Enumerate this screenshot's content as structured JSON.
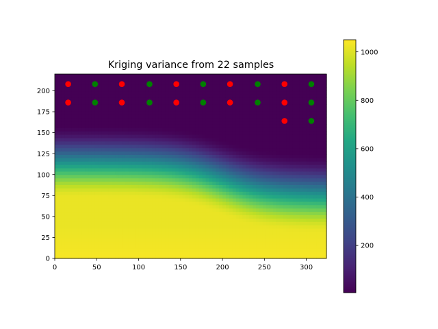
{
  "chart_data": {
    "type": "heatmap",
    "title": "Kriging variance from 22 samples",
    "xlabel": "",
    "ylabel": "",
    "xlim": [
      0,
      324
    ],
    "ylim": [
      0,
      220
    ],
    "x_ticks": [
      0,
      50,
      100,
      150,
      200,
      250,
      300
    ],
    "y_ticks": [
      0,
      25,
      50,
      75,
      100,
      125,
      150,
      175,
      200
    ],
    "colormap": "viridis",
    "colorbar": {
      "range": [
        5,
        1050
      ],
      "ticks": [
        200,
        400,
        600,
        800,
        1000
      ]
    },
    "variance_profile": {
      "description_free_values": true,
      "boundary_left_x": 0,
      "boundary_right_x": 324,
      "low_y_left": 160,
      "low_y_right": 125,
      "high_y_left": 72,
      "high_y_right": 30,
      "transition_x_center": 200,
      "max_value": 1050,
      "min_value": 5
    },
    "series": [
      {
        "color": "#ff0000",
        "points": [
          [
            16,
            208
          ],
          [
            80,
            208
          ],
          [
            145,
            208
          ],
          [
            209,
            208
          ],
          [
            274,
            208
          ],
          [
            16,
            186
          ],
          [
            80,
            186
          ],
          [
            145,
            186
          ],
          [
            209,
            186
          ],
          [
            274,
            186
          ],
          [
            274,
            164
          ]
        ]
      },
      {
        "color": "#008000",
        "points": [
          [
            48,
            208
          ],
          [
            113,
            208
          ],
          [
            177,
            208
          ],
          [
            242,
            208
          ],
          [
            306,
            208
          ],
          [
            48,
            186
          ],
          [
            113,
            186
          ],
          [
            177,
            186
          ],
          [
            242,
            186
          ],
          [
            306,
            186
          ],
          [
            306,
            164
          ]
        ]
      }
    ]
  }
}
